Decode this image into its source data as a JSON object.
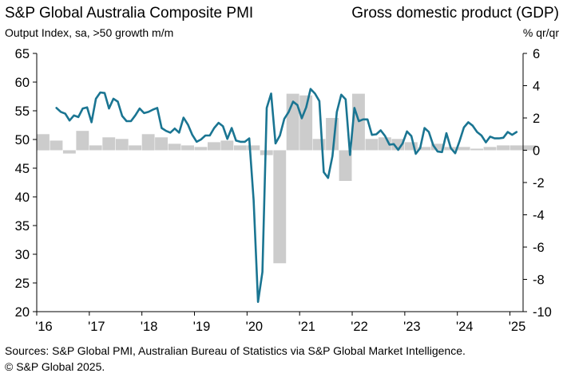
{
  "chart_data": {
    "type": "line+bar",
    "title": "S&P Global Australia Composite PMI",
    "subtitle": "Output  Index, sa, >50 growth m/m",
    "right_title": "Gross domestic product (GDP)",
    "right_subtitle": "% qr/qr",
    "left_axis": {
      "label": "Output Index",
      "ylim": [
        20,
        65
      ],
      "ticks": [
        "65",
        "60",
        "55",
        "50",
        "45",
        "40",
        "35",
        "30",
        "25",
        "20"
      ]
    },
    "right_axis": {
      "label": "% qr/qr",
      "ylim": [
        -10,
        6
      ],
      "ticks": [
        "6",
        "4",
        "2",
        "0",
        "-2",
        "-4",
        "-6",
        "-8",
        "-10"
      ]
    },
    "x_ticks": [
      "'16",
      "'17",
      "'18",
      "'19",
      "'20",
      "'21",
      "'22",
      "'23",
      "'24",
      "'25"
    ],
    "x_range": [
      2016.0,
      2025.25
    ],
    "series": [
      {
        "name": "Composite PMI",
        "axis": "left",
        "type": "line",
        "color": "#1a7592",
        "start": 2016.375,
        "step": 0.083333,
        "values": [
          55.5,
          54.8,
          54.5,
          53.3,
          54.2,
          53.9,
          55.4,
          55.6,
          53.0,
          57.1,
          58.2,
          58.1,
          55.4,
          57.1,
          56.6,
          54.1,
          53.2,
          53.2,
          54.2,
          55.4,
          54.6,
          54.8,
          55.2,
          55.5,
          52.0,
          51.5,
          51.2,
          51.9,
          51.2,
          53.8,
          52.6,
          50.8,
          49.6,
          50.0,
          50.7,
          50.7,
          52.0,
          52.9,
          52.3,
          50.1,
          52.0,
          49.8,
          49.6,
          49.6,
          50.2,
          39.4,
          21.7,
          26.9,
          55.5,
          58.0,
          49.3,
          50.7,
          53.6,
          54.8,
          56.6,
          56.0,
          53.7,
          55.6,
          58.8,
          58.0,
          56.7,
          44.3,
          43.3,
          47.1,
          54.8,
          57.8,
          57.0,
          47.3,
          55.5,
          53.2,
          53.5,
          53.5,
          50.8,
          50.9,
          51.6,
          50.6,
          49.1,
          49.2,
          48.2,
          49.3,
          51.4,
          50.6,
          47.5,
          48.5,
          52.0,
          51.3,
          49.0,
          47.9,
          47.8,
          51.1,
          48.5,
          47.6,
          49.7,
          52.1,
          53.0,
          52.4,
          51.3,
          50.7,
          49.5,
          50.5,
          50.2,
          50.2,
          50.3,
          51.3,
          50.8,
          51.3
        ]
      },
      {
        "name": "GDP",
        "axis": "right",
        "type": "bar",
        "color": "#cccccc",
        "start": 2016.0,
        "step": 0.25,
        "values": [
          1.0,
          0.6,
          -0.2,
          1.2,
          0.3,
          0.8,
          0.7,
          0.3,
          1.0,
          0.8,
          0.4,
          0.3,
          0.2,
          0.5,
          0.6,
          0.3,
          0.3,
          -0.3,
          -7.0,
          3.5,
          3.4,
          0.7,
          2.0,
          -1.9,
          3.5,
          0.7,
          0.8,
          0.7,
          0.5,
          0.2,
          0.4,
          0.2,
          0.2,
          0.1,
          0.2,
          0.3,
          0.3,
          0.3
        ]
      }
    ]
  },
  "footer": {
    "source": "Sources: S&P Global PMI, Australian Bureau of Statistics via S&P Global Market Intelligence.",
    "copyright": "© S&P Global 2025."
  }
}
